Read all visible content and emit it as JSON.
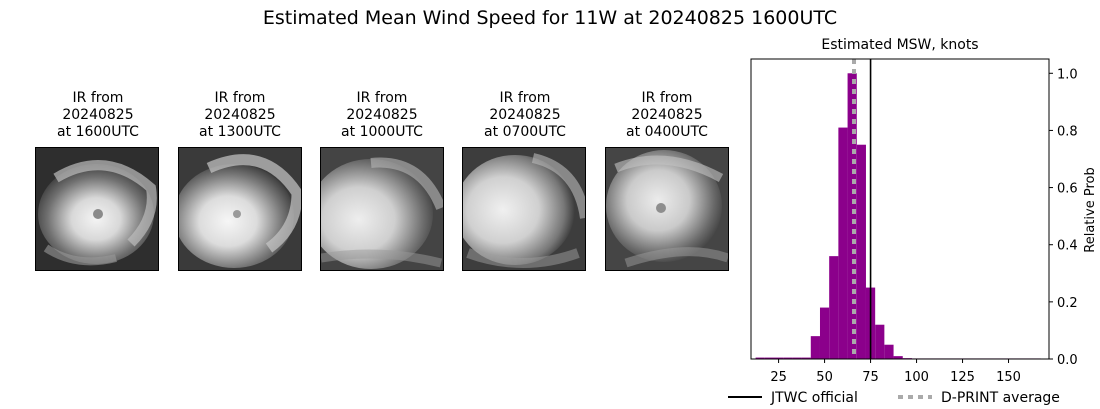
{
  "title": "Estimated Mean Wind Speed for 11W at 20240825 1600UTC",
  "ir_panels": [
    {
      "line1": "IR from",
      "line2": "20240825",
      "line3": "at 1600UTC"
    },
    {
      "line1": "IR from",
      "line2": "20240825",
      "line3": "at 1300UTC"
    },
    {
      "line1": "IR from",
      "line2": "20240825",
      "line3": "at 1000UTC"
    },
    {
      "line1": "IR from",
      "line2": "20240825",
      "line3": "at 0700UTC"
    },
    {
      "line1": "IR from",
      "line2": "20240825",
      "line3": "at 0400UTC"
    }
  ],
  "chart_data": {
    "type": "bar",
    "title": "Estimated MSW, knots",
    "xlabel": "",
    "ylabel": "Relative Prob",
    "xlim": [
      10,
      172
    ],
    "ylim": [
      0,
      1.05
    ],
    "xticks": [
      25,
      50,
      75,
      100,
      125,
      150
    ],
    "yticks": [
      0.0,
      0.2,
      0.4,
      0.6,
      0.8,
      1.0
    ],
    "bar_width": 5,
    "bar_color": "#8b008b",
    "bins": [
      {
        "x": 15,
        "value": 0.005
      },
      {
        "x": 20,
        "value": 0.005
      },
      {
        "x": 25,
        "value": 0.005
      },
      {
        "x": 30,
        "value": 0.005
      },
      {
        "x": 35,
        "value": 0.005
      },
      {
        "x": 40,
        "value": 0.005
      },
      {
        "x": 45,
        "value": 0.08
      },
      {
        "x": 50,
        "value": 0.18
      },
      {
        "x": 55,
        "value": 0.36
      },
      {
        "x": 60,
        "value": 0.81
      },
      {
        "x": 65,
        "value": 1.0
      },
      {
        "x": 70,
        "value": 0.75
      },
      {
        "x": 75,
        "value": 0.25
      },
      {
        "x": 80,
        "value": 0.12
      },
      {
        "x": 85,
        "value": 0.05
      },
      {
        "x": 90,
        "value": 0.01
      },
      {
        "x": 95,
        "value": 0.003
      },
      {
        "x": 100,
        "value": 0.002
      },
      {
        "x": 105,
        "value": 0.002
      },
      {
        "x": 110,
        "value": 0.002
      },
      {
        "x": 115,
        "value": 0.002
      },
      {
        "x": 120,
        "value": 0.002
      },
      {
        "x": 125,
        "value": 0.002
      },
      {
        "x": 130,
        "value": 0.002
      },
      {
        "x": 135,
        "value": 0.002
      },
      {
        "x": 140,
        "value": 0.002
      },
      {
        "x": 145,
        "value": 0.002
      },
      {
        "x": 150,
        "value": 0.002
      },
      {
        "x": 155,
        "value": 0.002
      },
      {
        "x": 160,
        "value": 0.002
      },
      {
        "x": 165,
        "value": 0.002
      }
    ],
    "jtwc_official": 75,
    "dprint_average": 66,
    "legend": [
      {
        "label": "JTWC official",
        "color": "#000000",
        "style": "solid"
      },
      {
        "label": "D-PRINT average",
        "color": "#aaaaaa",
        "style": "dotted"
      }
    ],
    "legend_placement": "bottom"
  }
}
